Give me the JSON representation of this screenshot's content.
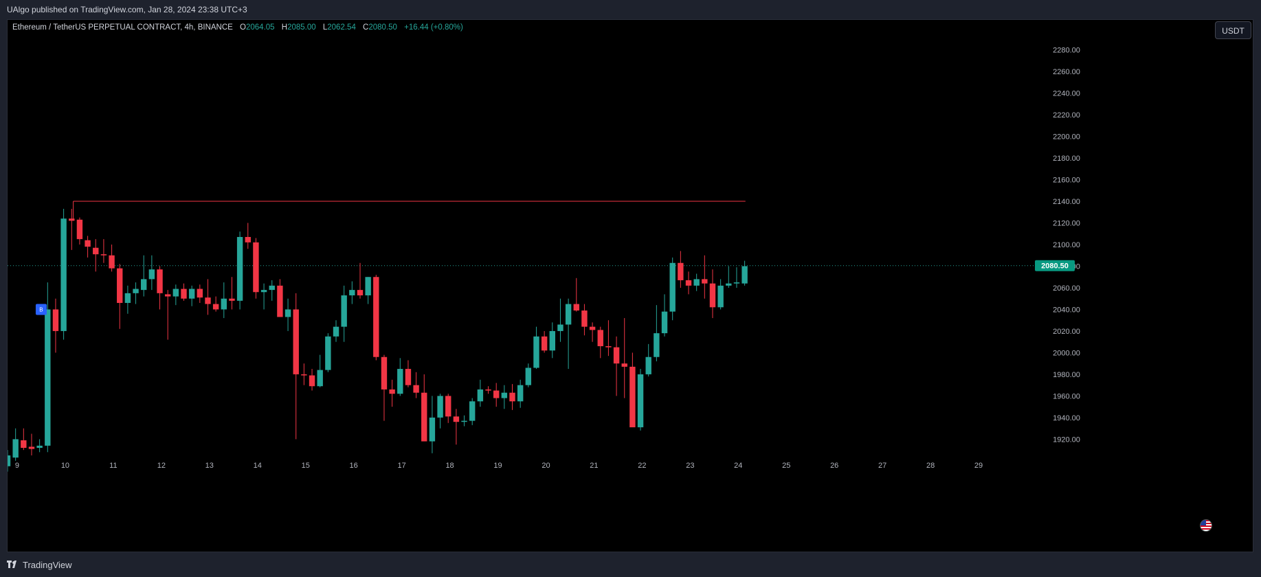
{
  "header": {
    "published": "UAlgo published on TradingView.com, Jan 28, 2024 23:38 UTC+3"
  },
  "legend": {
    "symbol": "Ethereum / TetherUS PERPETUAL CONTRACT, 4h, BINANCE",
    "o_label": "O",
    "o_value": "2064.05",
    "h_label": "H",
    "h_value": "2085.00",
    "l_label": "L",
    "l_value": "2062.54",
    "c_label": "C",
    "c_value": "2080.50",
    "change": "+16.44 (+0.80%)"
  },
  "currency_button": "USDT",
  "footer": {
    "brand": "TradingView"
  },
  "colors": {
    "up": "#26a69a",
    "down": "#f23645",
    "background": "#000000",
    "last_price_label": "#089981",
    "resistance_line": "#f23645",
    "marker": "#2962ff"
  },
  "icons": {
    "flag": "us-flag-icon",
    "logo": "tradingview-logo-icon"
  },
  "chart_data": {
    "type": "candlestick",
    "timeframe": "4h",
    "ylim": [
      1905,
      2295
    ],
    "y_ticks": [
      1920,
      1940,
      1960,
      1980,
      2000,
      2020,
      2040,
      2060,
      2080,
      2100,
      2120,
      2140,
      2160,
      2180,
      2200,
      2220,
      2240,
      2260,
      2280
    ],
    "y_tick_labels": [
      "1920.00",
      "1940.00",
      "1960.00",
      "1980.00",
      "2000.00",
      "2020.00",
      "2040.00",
      "2060.00",
      "2080.00",
      "2100.00",
      "2120.00",
      "2140.00",
      "2160.00",
      "2180.00",
      "2200.00",
      "2220.00",
      "2240.00",
      "2260.00",
      "2280.00"
    ],
    "x_labels": [
      "9",
      "10",
      "11",
      "12",
      "13",
      "14",
      "15",
      "16",
      "17",
      "18",
      "19",
      "20",
      "21",
      "22",
      "23",
      "24",
      "25",
      "26",
      "27",
      "28",
      "29"
    ],
    "x_label_days": [
      9,
      10,
      11,
      12,
      13,
      14,
      15,
      16,
      17,
      18,
      19,
      20,
      21,
      22,
      23,
      24,
      25,
      26,
      27,
      28,
      29
    ],
    "x_range_days": [
      8.8,
      30.1
    ],
    "last_price": 2080.5,
    "last_price_label": "2080.50",
    "resistance": {
      "price": 2140,
      "from_day": 10.167,
      "to_day": 24.15
    },
    "signal_marker": {
      "day": 9.5,
      "price": 2040,
      "label": "B"
    },
    "candles": [
      [
        1895,
        1910,
        1890,
        1905
      ],
      [
        1903,
        1930,
        1900,
        1920
      ],
      [
        1919,
        1930,
        1910,
        1912
      ],
      [
        1913,
        1925,
        1905,
        1911
      ],
      [
        1912,
        1920,
        1908,
        1914
      ],
      [
        1914,
        2065,
        1908,
        2040
      ],
      [
        2040,
        2050,
        2000,
        2020
      ],
      [
        2020,
        2133,
        2012,
        2124
      ],
      [
        2124,
        2133,
        2095,
        2122
      ],
      [
        2123,
        2125,
        2100,
        2105
      ],
      [
        2104,
        2108,
        2088,
        2098
      ],
      [
        2097,
        2105,
        2075,
        2091
      ],
      [
        2091,
        2105,
        2083,
        2090
      ],
      [
        2090,
        2100,
        2075,
        2078
      ],
      [
        2078,
        2082,
        2022,
        2046
      ],
      [
        2046,
        2062,
        2036,
        2055
      ],
      [
        2055,
        2065,
        2045,
        2059
      ],
      [
        2058,
        2090,
        2052,
        2068
      ],
      [
        2068,
        2090,
        2058,
        2077
      ],
      [
        2077,
        2080,
        2040,
        2055
      ],
      [
        2054,
        2058,
        2012,
        2052
      ],
      [
        2052,
        2063,
        2044,
        2059
      ],
      [
        2059,
        2064,
        2048,
        2050
      ],
      [
        2050,
        2062,
        2043,
        2059
      ],
      [
        2059,
        2063,
        2046,
        2051
      ],
      [
        2051,
        2068,
        2035,
        2045
      ],
      [
        2045,
        2052,
        2038,
        2040
      ],
      [
        2040,
        2065,
        2032,
        2050
      ],
      [
        2050,
        2070,
        2040,
        2048
      ],
      [
        2048,
        2112,
        2040,
        2107
      ],
      [
        2107,
        2120,
        2096,
        2102
      ],
      [
        2102,
        2106,
        2050,
        2056
      ],
      [
        2056,
        2064,
        2040,
        2058
      ],
      [
        2058,
        2067,
        2048,
        2062
      ],
      [
        2062,
        2068,
        2035,
        2033
      ],
      [
        2033,
        2050,
        2020,
        2040
      ],
      [
        2040,
        2055,
        1920,
        1980
      ],
      [
        1980,
        1990,
        1970,
        1979
      ],
      [
        1979,
        1985,
        1965,
        1969
      ],
      [
        1969,
        1998,
        1968,
        1984
      ],
      [
        1984,
        2018,
        1982,
        2015
      ],
      [
        2015,
        2030,
        2010,
        2024
      ],
      [
        2024,
        2062,
        2010,
        2053
      ],
      [
        2053,
        2066,
        2045,
        2058
      ],
      [
        2058,
        2083,
        2050,
        2053
      ],
      [
        2053,
        2070,
        2045,
        2070
      ],
      [
        2070,
        2072,
        1993,
        1996
      ],
      [
        1996,
        1998,
        1937,
        1966
      ],
      [
        1966,
        1975,
        1950,
        1962
      ],
      [
        1962,
        1995,
        1960,
        1985
      ],
      [
        1985,
        1993,
        1968,
        1970
      ],
      [
        1970,
        1982,
        1958,
        1963
      ],
      [
        1963,
        1980,
        1918,
        1918
      ],
      [
        1918,
        1960,
        1907,
        1940
      ],
      [
        1940,
        1962,
        1930,
        1960
      ],
      [
        1960,
        1962,
        1935,
        1941
      ],
      [
        1941,
        1948,
        1915,
        1936
      ],
      [
        1936,
        1942,
        1932,
        1937
      ],
      [
        1937,
        1958,
        1933,
        1955
      ],
      [
        1955,
        1975,
        1950,
        1966
      ],
      [
        1966,
        1969,
        1962,
        1965
      ],
      [
        1965,
        1972,
        1950,
        1958
      ],
      [
        1958,
        1970,
        1948,
        1963
      ],
      [
        1963,
        1971,
        1947,
        1955
      ],
      [
        1955,
        1975,
        1949,
        1970
      ],
      [
        1970,
        1990,
        1968,
        1986
      ],
      [
        1986,
        2024,
        1985,
        2015
      ],
      [
        2015,
        2020,
        2000,
        2002
      ],
      [
        2002,
        2028,
        1995,
        2020
      ],
      [
        2020,
        2050,
        2010,
        2026
      ],
      [
        2026,
        2050,
        1985,
        2045
      ],
      [
        2045,
        2069,
        2038,
        2039
      ],
      [
        2039,
        2045,
        2016,
        2024
      ],
      [
        2024,
        2028,
        2010,
        2021
      ],
      [
        2021,
        2024,
        1995,
        2006
      ],
      [
        2006,
        2030,
        1997,
        2005
      ],
      [
        2005,
        2015,
        1960,
        1990
      ],
      [
        1990,
        2032,
        1958,
        1987
      ],
      [
        1987,
        2000,
        1932,
        1931
      ],
      [
        1931,
        1985,
        1928,
        1980
      ],
      [
        1980,
        2008,
        1978,
        1996
      ],
      [
        1996,
        2044,
        1992,
        2018
      ],
      [
        2018,
        2054,
        2015,
        2038
      ],
      [
        2038,
        2088,
        2030,
        2083
      ],
      [
        2083,
        2094,
        2060,
        2067
      ],
      [
        2067,
        2075,
        2054,
        2062
      ],
      [
        2062,
        2073,
        2057,
        2068
      ],
      [
        2068,
        2090,
        2050,
        2064
      ],
      [
        2064,
        2077,
        2032,
        2042
      ],
      [
        2042,
        2068,
        2040,
        2062
      ],
      [
        2062,
        2080,
        2060,
        2064
      ],
      [
        2064,
        2079,
        2060,
        2065
      ],
      [
        2064,
        2085,
        2062,
        2080
      ]
    ]
  }
}
